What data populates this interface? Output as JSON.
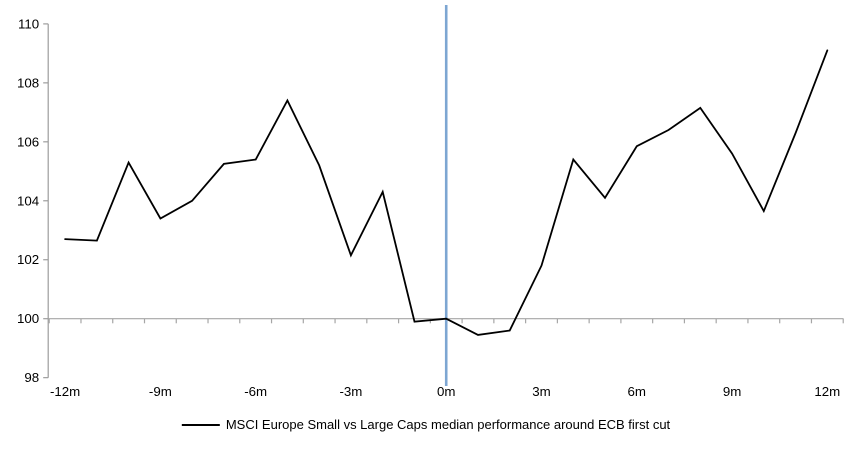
{
  "chart_data": {
    "type": "line",
    "x": [
      -12,
      -11,
      -10,
      -9,
      -8,
      -7,
      -6,
      -5,
      -4,
      -3,
      -2,
      -1,
      0,
      1,
      2,
      3,
      4,
      5,
      6,
      7,
      8,
      9,
      10,
      11,
      12
    ],
    "series": [
      {
        "name": "MSCI Europe Small vs Large Caps median performance around ECB first cut",
        "color": "#000000",
        "values": [
          102.7,
          102.65,
          105.3,
          103.4,
          104.0,
          105.25,
          105.4,
          107.4,
          105.2,
          102.15,
          104.3,
          99.9,
          100.0,
          99.45,
          99.6,
          101.8,
          105.4,
          104.1,
          105.85,
          106.4,
          107.15,
          105.6,
          103.65,
          106.3,
          109.1
        ]
      }
    ],
    "ylim": [
      98,
      110
    ],
    "yticks": [
      "110",
      "108",
      "106",
      "104",
      "102",
      "100",
      "98"
    ],
    "ytick_values": [
      110,
      108,
      106,
      104,
      102,
      100,
      98
    ],
    "xticks": [
      {
        "pos": -12,
        "label": "-12m"
      },
      {
        "pos": -9,
        "label": "-9m"
      },
      {
        "pos": -6,
        "label": "-6m"
      },
      {
        "pos": -3,
        "label": "-3m"
      },
      {
        "pos": 0,
        "label": "0m"
      },
      {
        "pos": 3,
        "label": "3m"
      },
      {
        "pos": 6,
        "label": "6m"
      },
      {
        "pos": 9,
        "label": "9m"
      },
      {
        "pos": 12,
        "label": "12m"
      }
    ],
    "x_axis_crosses_at": 100,
    "grid": false,
    "axis_color": "#9C9C9C",
    "baseline_color": "#A6A6A6",
    "event_line": {
      "x": 0,
      "color": "#7DA6D2"
    },
    "legend": {
      "position": "bottom-center",
      "label": "MSCI Europe Small vs Large Caps median performance around ECB first cut",
      "swatch_color": "#000000"
    }
  }
}
